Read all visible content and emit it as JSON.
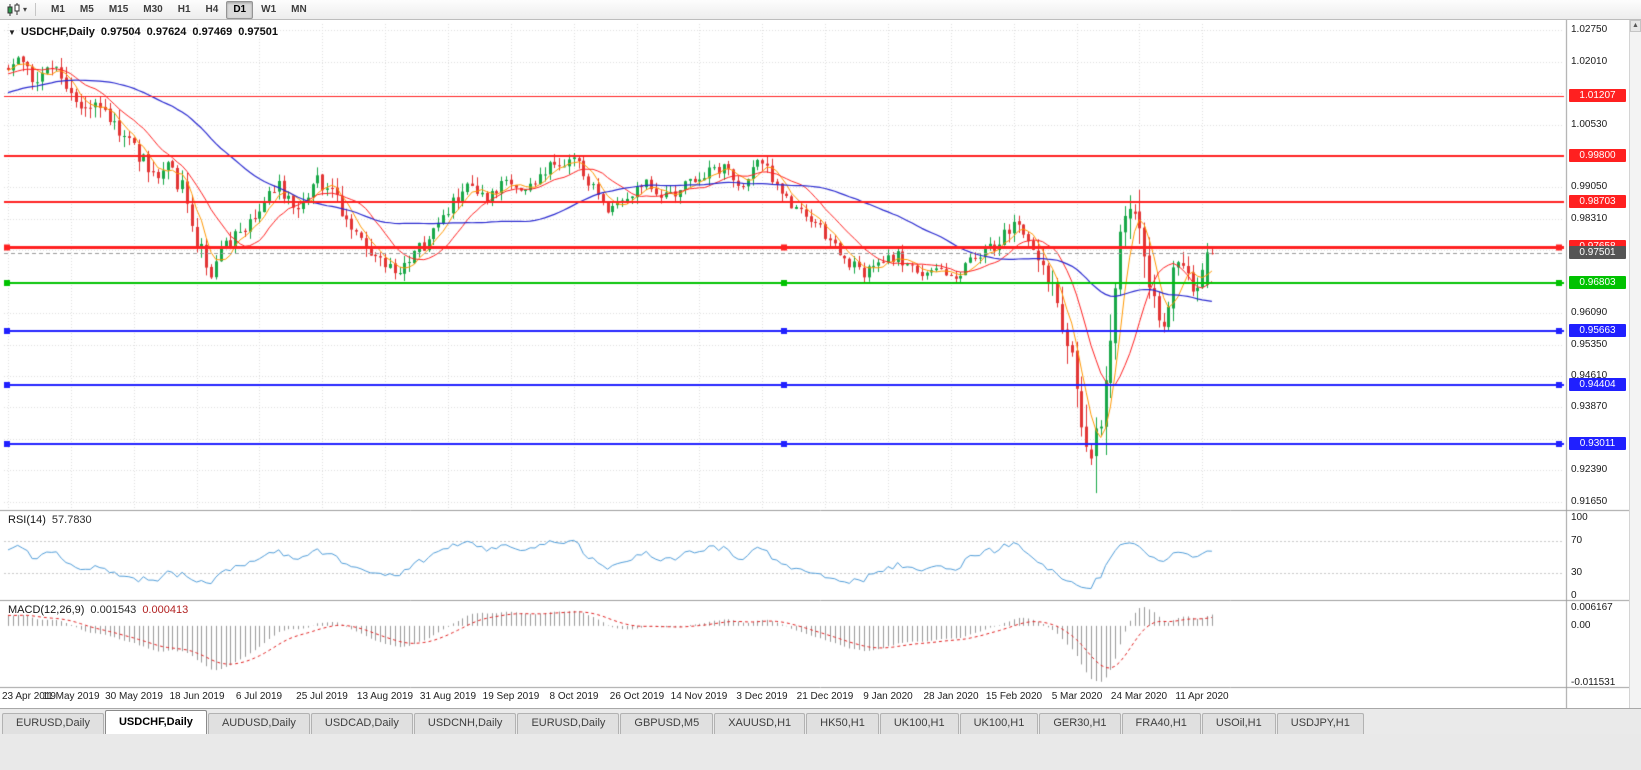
{
  "toolbar": {
    "dropdown_arrow": "▾",
    "timeframes": [
      "M1",
      "M5",
      "M15",
      "M30",
      "H1",
      "H4",
      "D1",
      "W1",
      "MN"
    ],
    "active_timeframe": "D1"
  },
  "chart": {
    "symbol_period": "USDCHF,Daily",
    "open": "0.97504",
    "high": "0.97624",
    "low": "0.97469",
    "close": "0.97501",
    "collapse_icon": "▼"
  },
  "price_axis": {
    "tick_labels": [
      "1.02750",
      "1.02010",
      "1.00530",
      "0.99050",
      "0.98310",
      "0.96090",
      "0.95350",
      "0.94610",
      "0.93870",
      "0.92390",
      "0.91650"
    ],
    "grid_top": 1.0275,
    "grid_step": 0.0074
  },
  "indicators": {
    "rsi": {
      "name": "RSI(14)",
      "value": "57.7830",
      "axis_labels": [
        "100",
        "70",
        "30",
        "0"
      ],
      "overbought": 70,
      "oversold": 30
    },
    "macd": {
      "name": "MACD(12,26,9)",
      "value": "0.001543",
      "signal": "0.000413",
      "axis_top": "0.006167",
      "axis_zero": "0.00",
      "axis_bottom": "-0.011531"
    }
  },
  "x_axis": {
    "labels": [
      "23 Apr 2019",
      "11 May 2019",
      "30 May 2019",
      "18 Jun 2019",
      "6 Jul 2019",
      "25 Jul 2019",
      "13 Aug 2019",
      "31 Aug 2019",
      "19 Sep 2019",
      "8 Oct 2019",
      "26 Oct 2019",
      "14 Nov 2019",
      "3 Dec 2019",
      "21 Dec 2019",
      "9 Jan 2020",
      "28 Jan 2020",
      "15 Feb 2020",
      "5 Mar 2020",
      "24 Mar 2020",
      "11 Apr 2020"
    ],
    "candles_per_label": 13
  },
  "tabs": {
    "items": [
      "EURUSD,Daily",
      "USDCHF,Daily",
      "AUDUSD,Daily",
      "USDCAD,Daily",
      "USDCNH,Daily",
      "EURUSD,Daily",
      "GBPUSD,M5",
      "XAUUSD,H1",
      "HK50,H1",
      "UK100,H1",
      "UK100,H1",
      "GER30,H1",
      "FRA40,H1",
      "USOil,H1",
      "USDJPY,H1"
    ],
    "active_index": 1
  },
  "scrollbar": {
    "up_arrow": "▲"
  },
  "chart_data": {
    "type": "candlestick",
    "symbol": "USDCHF",
    "timeframe": "Daily",
    "visible_candles": 250,
    "seed": 42,
    "price_range": {
      "max": 1.029,
      "min": 0.915
    },
    "current_price": 0.97501,
    "current_ohlc": {
      "o": 0.97504,
      "h": 0.97624,
      "l": 0.97469,
      "c": 0.97501
    },
    "levels": [
      {
        "price": 1.01207,
        "color": "#ff2020",
        "width": 1,
        "selected": false
      },
      {
        "price": 0.998,
        "color": "#ff2020",
        "width": 2,
        "selected": false
      },
      {
        "price": 0.98703,
        "color": "#ff2020",
        "width": 2,
        "selected": false
      },
      {
        "price": 0.97658,
        "color": "#ff2020",
        "width": 3,
        "selected": true
      },
      {
        "price": 0.96803,
        "color": "#00c200",
        "width": 2,
        "selected": true
      },
      {
        "price": 0.95663,
        "color": "#2020ff",
        "width": 2,
        "selected": true
      },
      {
        "price": 0.94404,
        "color": "#2020ff",
        "width": 2,
        "selected": true
      },
      {
        "price": 0.93011,
        "color": "#2020ff",
        "width": 2,
        "selected": true
      }
    ],
    "moving_averages": [
      {
        "period": 5,
        "color": "#ff9800",
        "width": 1
      },
      {
        "period": 12,
        "color": "#ff2020",
        "width": 1
      },
      {
        "period": 40,
        "color": "#2a2ad0",
        "width": 1.2
      }
    ],
    "colors": {
      "up": "#18a848",
      "down": "#e23535",
      "grid": "#dedede",
      "rsi_line": "#4f9cd8",
      "rsi_levels": "#c8c8c8",
      "macd_hist": "#9a9a9a",
      "macd_signal": "#e02020",
      "current_line": "#9a9a9a",
      "current_badge": "#555555",
      "separator": "#9e9e9e"
    },
    "history_range": [
      1.0,
      1.019
    ],
    "close_anchors": [
      [
        0,
        1.0185
      ],
      [
        3,
        1.0215
      ],
      [
        6,
        1.015
      ],
      [
        9,
        1.0205
      ],
      [
        12,
        1.015
      ],
      [
        15,
        1.008
      ],
      [
        18,
        1.011
      ],
      [
        22,
        1.0055
      ],
      [
        26,
        1.0
      ],
      [
        30,
        0.9935
      ],
      [
        33,
        0.9965
      ],
      [
        36,
        0.99
      ],
      [
        39,
        0.978
      ],
      [
        42,
        0.9706
      ],
      [
        45,
        0.976
      ],
      [
        48,
        0.98
      ],
      [
        52,
        0.986
      ],
      [
        56,
        0.9905
      ],
      [
        60,
        0.9865
      ],
      [
        64,
        0.993
      ],
      [
        67,
        0.989
      ],
      [
        70,
        0.983
      ],
      [
        74,
        0.976
      ],
      [
        78,
        0.9712
      ],
      [
        81,
        0.969
      ],
      [
        84,
        0.9745
      ],
      [
        88,
        0.98
      ],
      [
        91,
        0.9855
      ],
      [
        95,
        0.99
      ],
      [
        99,
        0.987
      ],
      [
        103,
        0.992
      ],
      [
        107,
        0.9895
      ],
      [
        111,
        0.9945
      ],
      [
        115,
        0.9965
      ],
      [
        117,
        0.9975
      ],
      [
        120,
        0.9915
      ],
      [
        124,
        0.986
      ],
      [
        128,
        0.9885
      ],
      [
        132,
        0.9925
      ],
      [
        136,
        0.988
      ],
      [
        140,
        0.9915
      ],
      [
        144,
        0.9935
      ],
      [
        148,
        0.9955
      ],
      [
        152,
        0.9905
      ],
      [
        155,
        0.997
      ],
      [
        158,
        0.993
      ],
      [
        162,
        0.986
      ],
      [
        166,
        0.983
      ],
      [
        169,
        0.979
      ],
      [
        173,
        0.9735
      ],
      [
        177,
        0.97
      ],
      [
        180,
        0.9725
      ],
      [
        184,
        0.9745
      ],
      [
        188,
        0.97
      ],
      [
        192,
        0.9715
      ],
      [
        196,
        0.969
      ],
      [
        200,
        0.9745
      ],
      [
        204,
        0.9765
      ],
      [
        208,
        0.9815
      ],
      [
        211,
        0.979
      ],
      [
        214,
        0.973
      ],
      [
        217,
        0.962
      ],
      [
        220,
        0.948
      ],
      [
        223,
        0.933
      ],
      [
        225,
        0.929
      ],
      [
        227,
        0.943
      ],
      [
        229,
        0.965
      ],
      [
        231,
        0.984
      ],
      [
        233,
        0.988
      ],
      [
        235,
        0.975
      ],
      [
        237,
        0.964
      ],
      [
        239,
        0.958
      ],
      [
        241,
        0.97
      ],
      [
        243,
        0.974
      ],
      [
        245,
        0.966
      ],
      [
        247,
        0.97
      ],
      [
        249,
        0.975
      ]
    ],
    "vol_anchors": [
      [
        0,
        0.0045
      ],
      [
        20,
        0.005
      ],
      [
        40,
        0.005
      ],
      [
        60,
        0.004
      ],
      [
        80,
        0.0045
      ],
      [
        100,
        0.0035
      ],
      [
        120,
        0.0035
      ],
      [
        140,
        0.003
      ],
      [
        160,
        0.0035
      ],
      [
        180,
        0.003
      ],
      [
        200,
        0.003
      ],
      [
        210,
        0.004
      ],
      [
        215,
        0.006
      ],
      [
        220,
        0.009
      ],
      [
        225,
        0.012
      ],
      [
        230,
        0.013
      ],
      [
        235,
        0.01
      ],
      [
        240,
        0.007
      ],
      [
        245,
        0.005
      ],
      [
        249,
        0.004
      ]
    ],
    "spike_low": {
      "index": 225,
      "low": 0.9185
    },
    "forced_candles": {
      "248": {
        "o": 0.9676,
        "h": 0.9774,
        "l": 0.9668,
        "c": 0.9752
      },
      "249": {
        "o": 0.97504,
        "h": 0.97624,
        "l": 0.97469,
        "c": 0.97501
      }
    }
  }
}
